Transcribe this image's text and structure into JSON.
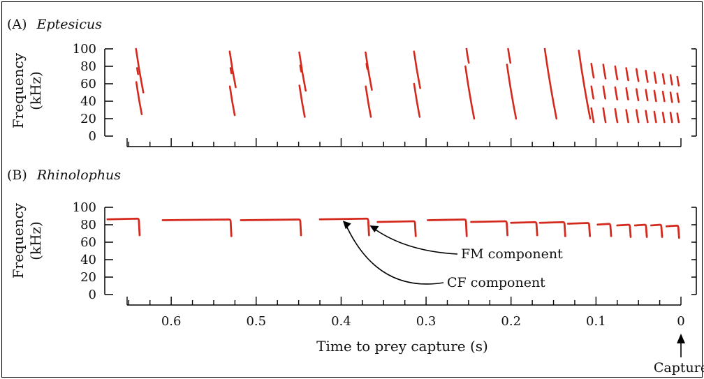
{
  "chart_data": {
    "type": "scatter",
    "x_direction": "decreasing",
    "xlabel": "Time to prey capture (s)",
    "xlim": [
      0.67,
      0.0
    ],
    "x_ticks": [
      "0.6",
      "0.5",
      "0.4",
      "0.3",
      "0.2",
      "0.1",
      "0"
    ],
    "x_tick_values": [
      0.6,
      0.5,
      0.4,
      0.3,
      0.2,
      0.1,
      0.0
    ],
    "capture_label": "Capture",
    "line_color": "#d42a1e",
    "panels": [
      {
        "label": "(A)",
        "species": "Eptesicus",
        "ylabel_line1": "Frequency",
        "ylabel_line2": "(kHz)",
        "ylim": [
          0,
          100
        ],
        "y_ticks": [
          "100",
          "80",
          "60",
          "40",
          "20",
          "0"
        ],
        "y_tick_values": [
          100,
          80,
          60,
          40,
          20,
          0
        ],
        "calls": [
          {
            "t": 0.64,
            "segments": [
              [
                100,
                50
              ],
              [
                62,
                25
              ],
              [
                78,
                71
              ]
            ]
          },
          {
            "t": 0.53,
            "segments": [
              [
                97,
                56
              ],
              [
                57,
                24
              ],
              [
                78,
                72
              ]
            ]
          },
          {
            "t": 0.448,
            "segments": [
              [
                96,
                52
              ],
              [
                58,
                22
              ],
              [
                81,
                74
              ]
            ]
          },
          {
            "t": 0.37,
            "segments": [
              [
                96,
                53
              ],
              [
                57,
                22
              ],
              [
                83,
                77
              ]
            ]
          },
          {
            "t": 0.313,
            "segments": [
              [
                97,
                55
              ],
              [
                60,
                22
              ]
            ]
          },
          {
            "t": 0.252,
            "segments": [
              [
                100,
                84
              ],
              [
                80,
                20
              ]
            ]
          },
          {
            "t": 0.203,
            "segments": [
              [
                100,
                84
              ],
              [
                82,
                20
              ]
            ]
          },
          {
            "t": 0.158,
            "segments": [
              [
                100,
                20
              ]
            ]
          },
          {
            "t": 0.118,
            "segments": [
              [
                98,
                20
              ]
            ]
          },
          {
            "t": 0.105,
            "segments": [
              [
                83,
                67
              ],
              [
                57,
                43
              ],
              [
                32,
                16
              ]
            ]
          },
          {
            "t": 0.091,
            "segments": [
              [
                82,
                66
              ],
              [
                57,
                43
              ],
              [
                32,
                16
              ]
            ]
          },
          {
            "t": 0.077,
            "segments": [
              [
                80,
                65
              ],
              [
                56,
                42
              ],
              [
                31,
                16
              ]
            ]
          },
          {
            "t": 0.064,
            "segments": [
              [
                78,
                64
              ],
              [
                55,
                42
              ],
              [
                30,
                16
              ]
            ]
          },
          {
            "t": 0.052,
            "segments": [
              [
                77,
                63
              ],
              [
                54,
                41
              ],
              [
                30,
                16
              ]
            ]
          },
          {
            "t": 0.041,
            "segments": [
              [
                75,
                62
              ],
              [
                53,
                41
              ],
              [
                29,
                16
              ]
            ]
          },
          {
            "t": 0.031,
            "segments": [
              [
                73,
                61
              ],
              [
                52,
                40
              ],
              [
                28,
                16
              ]
            ]
          },
          {
            "t": 0.021,
            "segments": [
              [
                71,
                60
              ],
              [
                51,
                40
              ],
              [
                27,
                16
              ]
            ]
          },
          {
            "t": 0.012,
            "segments": [
              [
                70,
                59
              ],
              [
                50,
                39
              ],
              [
                27,
                16
              ]
            ]
          },
          {
            "t": 0.004,
            "segments": [
              [
                68,
                58
              ],
              [
                49,
                39
              ],
              [
                26,
                16
              ]
            ]
          }
        ]
      },
      {
        "label": "(B)",
        "species": "Rhinolophus",
        "ylabel_line1": "Frequency",
        "ylabel_line2": "(kHz)",
        "ylim": [
          0,
          100
        ],
        "y_ticks": [
          "100",
          "80",
          "60",
          "40",
          "20",
          "0"
        ],
        "y_tick_values": [
          100,
          80,
          60,
          40,
          20,
          0
        ],
        "calls": [
          {
            "t_start": 0.675,
            "t_end": 0.638,
            "cf": 87,
            "fm_end": 68
          },
          {
            "t_start": 0.61,
            "t_end": 0.53,
            "cf": 86,
            "fm_end": 67
          },
          {
            "t_start": 0.518,
            "t_end": 0.448,
            "cf": 86,
            "fm_end": 68
          },
          {
            "t_start": 0.425,
            "t_end": 0.368,
            "cf": 87,
            "fm_end": 68
          },
          {
            "t_start": 0.357,
            "t_end": 0.313,
            "cf": 84,
            "fm_end": 67
          },
          {
            "t_start": 0.298,
            "t_end": 0.253,
            "cf": 86,
            "fm_end": 67
          },
          {
            "t_start": 0.247,
            "t_end": 0.205,
            "cf": 84,
            "fm_end": 68
          },
          {
            "t_start": 0.2,
            "t_end": 0.17,
            "cf": 83,
            "fm_end": 68
          },
          {
            "t_start": 0.166,
            "t_end": 0.137,
            "cf": 83,
            "fm_end": 67
          },
          {
            "t_start": 0.133,
            "t_end": 0.108,
            "cf": 82,
            "fm_end": 67
          },
          {
            "t_start": 0.098,
            "t_end": 0.083,
            "cf": 81,
            "fm_end": 67
          },
          {
            "t_start": 0.075,
            "t_end": 0.06,
            "cf": 80,
            "fm_end": 66
          },
          {
            "t_start": 0.054,
            "t_end": 0.041,
            "cf": 80,
            "fm_end": 66
          },
          {
            "t_start": 0.035,
            "t_end": 0.023,
            "cf": 80,
            "fm_end": 66
          },
          {
            "t_start": 0.017,
            "t_end": 0.003,
            "cf": 79,
            "fm_end": 65
          }
        ],
        "annotations": [
          {
            "text": "FM component",
            "target_t": 0.368,
            "target_f": 80
          },
          {
            "text": "CF component",
            "target_t": 0.398,
            "target_f": 87
          }
        ]
      }
    ]
  }
}
